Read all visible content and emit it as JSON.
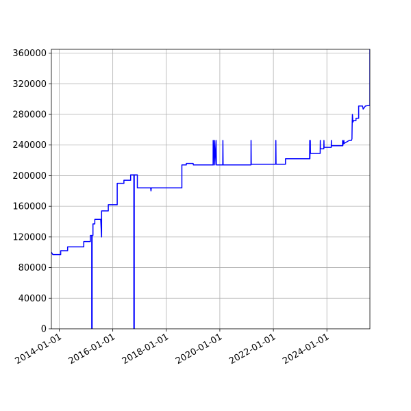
{
  "chart_data": {
    "type": "line",
    "title": "",
    "xlabel": "",
    "ylabel": "",
    "x_type": "date",
    "xlim": [
      "2013-09-15",
      "2025-08-10"
    ],
    "ylim": [
      0,
      365000
    ],
    "grid": true,
    "x_ticks": [
      "2014-01-01",
      "2016-01-01",
      "2018-01-01",
      "2020-01-01",
      "2022-01-01",
      "2024-01-01"
    ],
    "y_ticks": [
      0,
      40000,
      80000,
      120000,
      160000,
      200000,
      240000,
      280000,
      320000,
      360000
    ],
    "series": [
      {
        "color": "#0000ff",
        "points": [
          [
            "2013-09-15",
            100000
          ],
          [
            "2013-10-05",
            97000
          ],
          [
            "2014-01-20",
            97000
          ],
          [
            "2014-01-20",
            102000
          ],
          [
            "2014-04-25",
            102000
          ],
          [
            "2014-04-25",
            107000
          ],
          [
            "2014-12-01",
            107000
          ],
          [
            "2014-12-01",
            114000
          ],
          [
            "2015-03-01",
            114000
          ],
          [
            "2015-03-01",
            122000
          ],
          [
            "2015-03-20",
            122000
          ],
          [
            "2015-03-20",
            0
          ],
          [
            "2015-03-25",
            0
          ],
          [
            "2015-03-25",
            122000
          ],
          [
            "2015-04-05",
            122000
          ],
          [
            "2015-04-05",
            137000
          ],
          [
            "2015-05-01",
            137000
          ],
          [
            "2015-05-01",
            143000
          ],
          [
            "2015-07-20",
            143000
          ],
          [
            "2015-08-01",
            120000
          ],
          [
            "2015-08-01",
            154000
          ],
          [
            "2015-11-01",
            154000
          ],
          [
            "2015-11-01",
            162000
          ],
          [
            "2016-03-01",
            162000
          ],
          [
            "2016-03-01",
            190000
          ],
          [
            "2016-06-01",
            190000
          ],
          [
            "2016-06-01",
            194000
          ],
          [
            "2016-09-01",
            194000
          ],
          [
            "2016-09-01",
            201000
          ],
          [
            "2016-10-15",
            201000
          ],
          [
            "2016-10-15",
            0
          ],
          [
            "2016-10-20",
            0
          ],
          [
            "2016-10-20",
            201000
          ],
          [
            "2016-12-01",
            201000
          ],
          [
            "2016-12-01",
            184000
          ],
          [
            "2017-06-01",
            184000
          ],
          [
            "2017-06-05",
            180000
          ],
          [
            "2017-06-10",
            184000
          ],
          [
            "2018-08-01",
            184000
          ],
          [
            "2018-08-01",
            214000
          ],
          [
            "2018-10-01",
            214000
          ],
          [
            "2018-10-01",
            216000
          ],
          [
            "2019-01-01",
            216000
          ],
          [
            "2019-01-05",
            214000
          ],
          [
            "2019-10-01",
            214000
          ],
          [
            "2019-10-02",
            246000
          ],
          [
            "2019-10-05",
            214000
          ],
          [
            "2019-10-20",
            246000
          ],
          [
            "2019-10-25",
            214000
          ],
          [
            "2019-11-10",
            246000
          ],
          [
            "2019-11-15",
            214000
          ],
          [
            "2020-02-10",
            214000
          ],
          [
            "2020-02-12",
            246000
          ],
          [
            "2020-02-15",
            214000
          ],
          [
            "2021-03-01",
            214000
          ],
          [
            "2021-03-02",
            246000
          ],
          [
            "2021-03-05",
            215000
          ],
          [
            "2022-02-01",
            215000
          ],
          [
            "2022-02-03",
            246000
          ],
          [
            "2022-02-06",
            215000
          ],
          [
            "2022-06-15",
            215000
          ],
          [
            "2022-06-15",
            222000
          ],
          [
            "2023-05-10",
            222000
          ],
          [
            "2023-05-12",
            246000
          ],
          [
            "2023-05-14",
            222000
          ],
          [
            "2023-05-20",
            246000
          ],
          [
            "2023-05-22",
            229000
          ],
          [
            "2023-10-01",
            229000
          ],
          [
            "2023-10-03",
            246000
          ],
          [
            "2023-10-05",
            235000
          ],
          [
            "2023-11-20",
            235000
          ],
          [
            "2023-11-22",
            246000
          ],
          [
            "2023-11-24",
            237000
          ],
          [
            "2024-03-01",
            237000
          ],
          [
            "2024-03-02",
            246000
          ],
          [
            "2024-03-04",
            239000
          ],
          [
            "2024-08-01",
            239000
          ],
          [
            "2024-08-03",
            246000
          ],
          [
            "2024-08-05",
            239000
          ],
          [
            "2024-08-20",
            246000
          ],
          [
            "2024-08-22",
            242000
          ],
          [
            "2024-11-01",
            246000
          ],
          [
            "2024-12-01",
            246000
          ],
          [
            "2024-12-08",
            248000
          ],
          [
            "2024-12-10",
            261000
          ],
          [
            "2024-12-12",
            270000
          ],
          [
            "2024-12-15",
            280000
          ],
          [
            "2024-12-20",
            270000
          ],
          [
            "2025-01-01",
            272000
          ],
          [
            "2025-02-01",
            272000
          ],
          [
            "2025-02-01",
            275000
          ],
          [
            "2025-03-10",
            275000
          ],
          [
            "2025-03-10",
            291000
          ],
          [
            "2025-05-01",
            291000
          ],
          [
            "2025-05-10",
            287000
          ],
          [
            "2025-06-10",
            291000
          ],
          [
            "2025-08-10",
            292000
          ],
          [
            "2025-08-10",
            365000
          ]
        ]
      }
    ]
  }
}
